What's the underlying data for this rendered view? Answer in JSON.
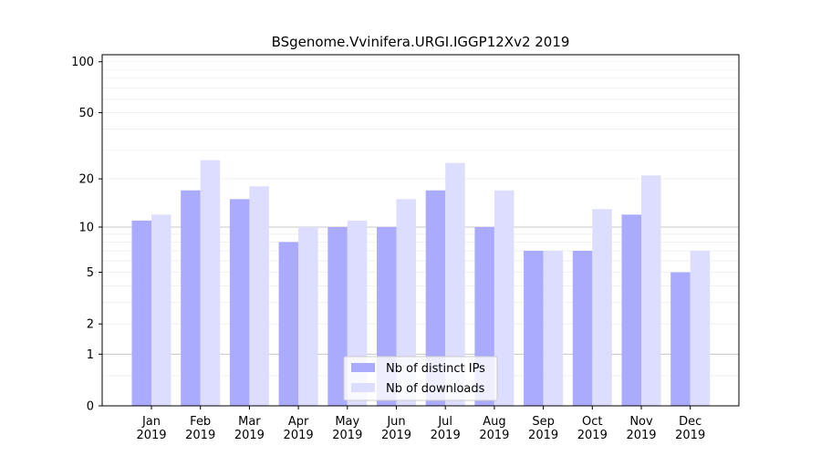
{
  "chart_data": {
    "type": "bar",
    "title": "BSgenome.Vvinifera.URGI.IGGP12Xv2 2019",
    "xlabel": "",
    "ylabel": "",
    "yscale": "log(1+y)",
    "ylim": [
      0,
      110
    ],
    "yticks": [
      0,
      1,
      2,
      5,
      10,
      20,
      50,
      100
    ],
    "categories": [
      "Jan\n2019",
      "Feb\n2019",
      "Mar\n2019",
      "Apr\n2019",
      "May\n2019",
      "Jun\n2019",
      "Jul\n2019",
      "Aug\n2019",
      "Sep\n2019",
      "Oct\n2019",
      "Nov\n2019",
      "Dec\n2019"
    ],
    "series": [
      {
        "name": "Nb of distinct IPs",
        "color": "#aaaaff",
        "values": [
          11,
          17,
          15,
          8,
          10,
          10,
          17,
          10,
          7,
          7,
          12,
          5
        ]
      },
      {
        "name": "Nb of downloads",
        "color": "#ddddff",
        "values": [
          12,
          26,
          18,
          10,
          11,
          15,
          25,
          17,
          7,
          13,
          21,
          7
        ]
      }
    ],
    "legend": "bottom-center",
    "grid": true
  }
}
